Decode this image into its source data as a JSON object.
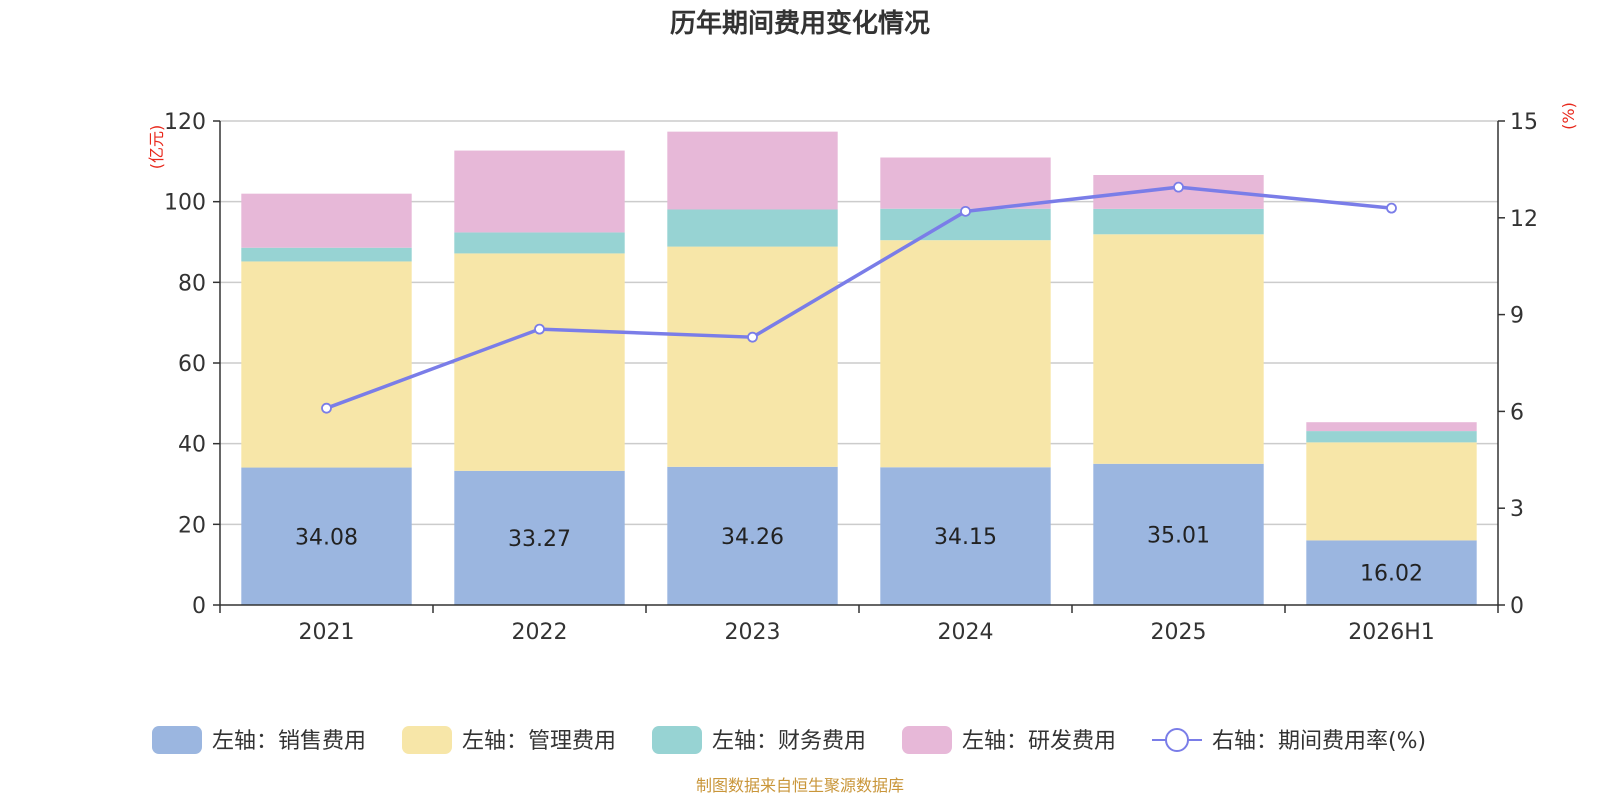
{
  "chart_data": {
    "type": "bar",
    "title": "历年期间费用变化情况",
    "categories": [
      "2021",
      "2022",
      "2023",
      "2024",
      "2025",
      "2026H1"
    ],
    "left_axis": {
      "unit": "(亿元)",
      "ylim": [
        0,
        120
      ],
      "ticks": [
        "0",
        "20",
        "40",
        "60",
        "80",
        "100",
        "120"
      ]
    },
    "right_axis": {
      "unit": "(%)",
      "ylim": [
        0,
        15
      ],
      "ticks": [
        "0",
        "3",
        "6",
        "9",
        "12",
        "15"
      ]
    },
    "stacked": true,
    "grid": true,
    "legend_position": "bottom",
    "series": [
      {
        "name": "左轴：销售费用",
        "axis": "left",
        "type": "bar",
        "color": "#9bb6e0",
        "values": [
          34.08,
          33.27,
          34.26,
          34.15,
          35.01,
          16.02
        ],
        "labels": [
          "34.08",
          "33.27",
          "34.26",
          "34.15",
          "35.01",
          "16.02"
        ]
      },
      {
        "name": "左轴：管理费用",
        "axis": "left",
        "type": "bar",
        "color": "#f7e6a8",
        "values": [
          51.1,
          53.9,
          54.6,
          56.3,
          56.9,
          24.3
        ]
      },
      {
        "name": "左轴：财务费用",
        "axis": "left",
        "type": "bar",
        "color": "#97d3d3",
        "values": [
          3.4,
          5.2,
          9.2,
          7.8,
          6.3,
          2.8
        ]
      },
      {
        "name": "左轴：研发费用",
        "axis": "left",
        "type": "bar",
        "color": "#e7b8d8",
        "values": [
          13.4,
          20.3,
          19.3,
          12.7,
          8.4,
          2.2
        ]
      },
      {
        "name": "右轴：期间费用率(%)",
        "axis": "right",
        "type": "line",
        "color": "#7a7de8",
        "values": [
          6.1,
          8.55,
          8.3,
          12.2,
          12.95,
          12.3
        ]
      }
    ]
  },
  "footer": {
    "source": "制图数据来自恒生聚源数据库"
  }
}
